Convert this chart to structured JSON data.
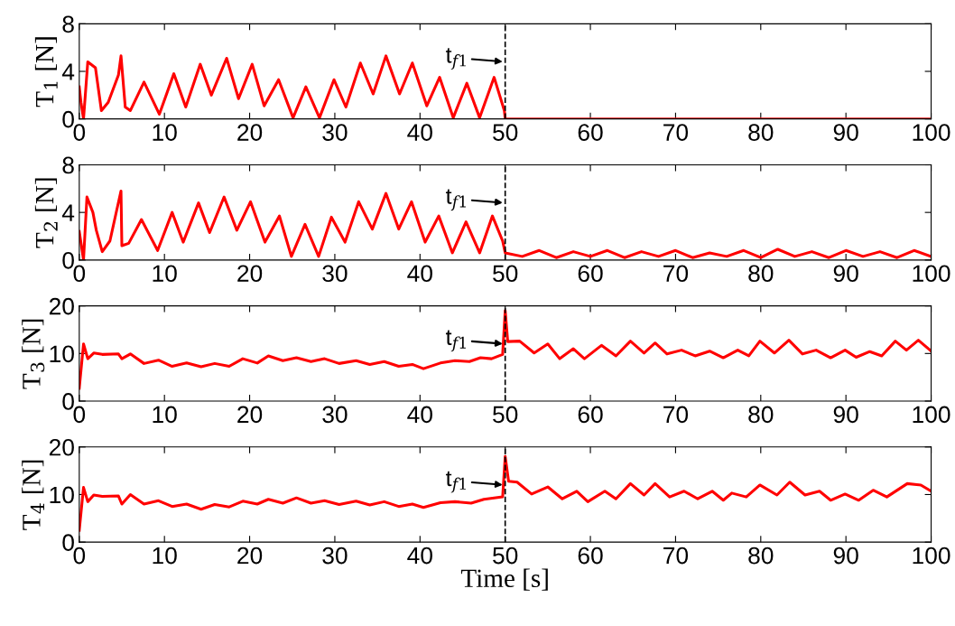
{
  "chart_data": [
    {
      "type": "line",
      "ylabel": "T$_{1}$ [N]",
      "xlim": [
        0,
        100
      ],
      "ylim": [
        0,
        8
      ],
      "xticks": [
        0,
        10,
        20,
        30,
        40,
        50,
        60,
        70,
        80,
        90,
        100
      ],
      "yticks": [
        0,
        4,
        8
      ],
      "grid": false,
      "legend": false,
      "marker": "none",
      "line_style": "solid",
      "series": [
        {
          "color": "#ff0000",
          "x": [
            0,
            0.2,
            0.5,
            1.0,
            1.9,
            2.6,
            3.4,
            4.6,
            4.9,
            5.4,
            6.0,
            7.6,
            9.4,
            11.1,
            12.5,
            14.2,
            15.5,
            17.3,
            18.7,
            20.3,
            21.7,
            23.4,
            25.1,
            26.6,
            28.2,
            29.9,
            31.3,
            33.0,
            34.5,
            36.0,
            37.6,
            39.1,
            40.8,
            42.3,
            43.9,
            45.5,
            47.0,
            48.7,
            49.9,
            50.0,
            100
          ],
          "values": [
            2.7,
            1.4,
            0,
            4.8,
            4.3,
            0.7,
            1.4,
            3.7,
            5.3,
            1.0,
            0.7,
            3.1,
            0.4,
            3.8,
            1.0,
            4.6,
            2.0,
            5.1,
            1.7,
            4.6,
            1.1,
            3.3,
            0.1,
            2.7,
            0.1,
            3.3,
            1.0,
            4.7,
            2.1,
            5.3,
            2.1,
            4.7,
            1.1,
            3.5,
            0.1,
            3.0,
            0.1,
            3.5,
            0.7,
            0,
            0
          ]
        }
      ],
      "ref_lines": [
        {
          "axis": "x",
          "value": 50,
          "label": "t$_{f1}$",
          "color": "#000000",
          "line_style": "dashed"
        }
      ]
    },
    {
      "type": "line",
      "ylabel": "T$_{2}$ [N]",
      "xlim": [
        0,
        100
      ],
      "ylim": [
        0,
        8
      ],
      "xticks": [
        0,
        10,
        20,
        30,
        40,
        50,
        60,
        70,
        80,
        90,
        100
      ],
      "yticks": [
        0,
        4,
        8
      ],
      "grid": false,
      "legend": false,
      "marker": "none",
      "line_style": "solid",
      "series": [
        {
          "color": "#ff0000",
          "x": [
            0,
            0.5,
            0.9,
            1.6,
            2.0,
            2.7,
            3.6,
            4.4,
            4.9,
            5.0,
            5.8,
            7.3,
            9.2,
            10.9,
            12.2,
            14.0,
            15.3,
            17.0,
            18.5,
            20.1,
            21.8,
            23.5,
            24.9,
            26.5,
            28.1,
            29.6,
            31.2,
            32.8,
            34.4,
            36.0,
            37.5,
            39.0,
            40.6,
            42.2,
            43.8,
            45.4,
            47.0,
            48.5,
            49.7,
            50.0,
            52,
            54,
            56,
            58,
            60,
            62,
            64,
            66,
            68,
            70,
            72,
            74,
            76,
            78,
            80,
            82,
            84,
            86,
            88,
            90,
            92,
            94,
            96,
            98,
            100
          ],
          "values": [
            2.4,
            0,
            5.3,
            4.0,
            2.5,
            0.7,
            1.6,
            4.2,
            5.8,
            1.2,
            1.4,
            3.4,
            0.8,
            4.0,
            1.5,
            4.8,
            2.3,
            5.3,
            2.5,
            4.9,
            1.5,
            3.7,
            0.3,
            3.0,
            0.3,
            3.6,
            1.5,
            4.9,
            2.6,
            5.6,
            2.6,
            4.9,
            1.5,
            3.7,
            0.6,
            3.2,
            0.6,
            3.7,
            1.6,
            0.6,
            0.3,
            0.8,
            0.2,
            0.7,
            0.3,
            0.8,
            0.2,
            0.7,
            0.3,
            0.8,
            0.2,
            0.6,
            0.3,
            0.8,
            0.2,
            0.9,
            0.3,
            0.7,
            0.2,
            0.8,
            0.3,
            0.7,
            0.2,
            0.8,
            0.3
          ]
        }
      ],
      "ref_lines": [
        {
          "axis": "x",
          "value": 50,
          "label": "t$_{f1}$",
          "color": "#000000",
          "line_style": "dashed"
        }
      ]
    },
    {
      "type": "line",
      "ylabel": "T$_{3}$ [N]",
      "xlim": [
        0,
        100
      ],
      "ylim": [
        0,
        20
      ],
      "xticks": [
        0,
        10,
        20,
        30,
        40,
        50,
        60,
        70,
        80,
        90,
        100
      ],
      "yticks": [
        0,
        10,
        20
      ],
      "grid": false,
      "legend": false,
      "marker": "none",
      "line_style": "solid",
      "series": [
        {
          "color": "#ff0000",
          "x": [
            0,
            0.5,
            1.0,
            1.7,
            2.7,
            4.6,
            5.0,
            6.0,
            7.6,
            9.3,
            10.9,
            12.6,
            14.3,
            15.9,
            17.6,
            19.2,
            20.9,
            22.2,
            23.9,
            25.5,
            27.2,
            28.8,
            30.5,
            32.5,
            34.1,
            35.8,
            37.5,
            39.1,
            40.4,
            42.4,
            44.1,
            45.8,
            47.1,
            48.4,
            49.7,
            50.0,
            50.3,
            51.7,
            53.4,
            55.0,
            56.4,
            58.0,
            59.3,
            61.3,
            63.0,
            64.7,
            66.3,
            67.6,
            69.0,
            70.7,
            72.3,
            74.0,
            75.6,
            77.3,
            78.6,
            79.9,
            81.6,
            83.3,
            84.9,
            86.5,
            88.2,
            89.9,
            91.2,
            92.8,
            94.2,
            95.8,
            97.1,
            98.5,
            100
          ],
          "values": [
            2.7,
            12.0,
            8.9,
            10.1,
            9.8,
            9.9,
            8.9,
            9.9,
            7.9,
            8.6,
            7.3,
            8.0,
            7.2,
            7.9,
            7.3,
            8.9,
            8.0,
            9.5,
            8.5,
            9.1,
            8.3,
            8.9,
            7.9,
            8.5,
            7.7,
            8.3,
            7.3,
            7.7,
            6.8,
            8.0,
            8.5,
            8.3,
            9.1,
            8.9,
            9.8,
            19,
            12.5,
            12.6,
            10.1,
            12.0,
            8.9,
            11.0,
            8.9,
            11.7,
            9.5,
            12.6,
            10.1,
            12.2,
            9.9,
            10.7,
            9.5,
            10.5,
            9.1,
            10.7,
            9.5,
            12.6,
            10.1,
            12.8,
            9.9,
            10.7,
            9.1,
            10.7,
            9.2,
            10.4,
            9.5,
            12.6,
            10.7,
            12.8,
            10.5
          ]
        }
      ],
      "ref_lines": [
        {
          "axis": "x",
          "value": 50,
          "label": "t$_{f1}$",
          "color": "#000000",
          "line_style": "dashed"
        }
      ]
    },
    {
      "type": "line",
      "ylabel": "T$_{4}$ [N]",
      "xlabel": "Time [s]",
      "xlim": [
        0,
        100
      ],
      "ylim": [
        0,
        20
      ],
      "xticks": [
        0,
        10,
        20,
        30,
        40,
        50,
        60,
        70,
        80,
        90,
        100
      ],
      "yticks": [
        0,
        10,
        20
      ],
      "grid": false,
      "legend": false,
      "marker": "none",
      "line_style": "solid",
      "series": [
        {
          "color": "#ff0000",
          "x": [
            0,
            0.5,
            1.0,
            1.7,
            2.7,
            4.6,
            5.0,
            6.0,
            7.6,
            9.3,
            10.9,
            12.6,
            14.3,
            15.9,
            17.6,
            19.2,
            20.9,
            22.2,
            23.9,
            25.5,
            27.2,
            28.8,
            30.5,
            32.5,
            34.1,
            35.8,
            37.5,
            39.1,
            40.4,
            42.4,
            44.1,
            46.0,
            47.5,
            49.7,
            50.0,
            50.4,
            51.4,
            53.1,
            55.0,
            56.7,
            58.4,
            59.7,
            61.7,
            63.0,
            64.7,
            66.3,
            67.6,
            69.3,
            71.0,
            72.6,
            74.3,
            75.6,
            76.6,
            78.3,
            79.9,
            81.9,
            83.4,
            85.2,
            86.9,
            88.2,
            89.9,
            91.5,
            93.2,
            94.8,
            97.2,
            98.8,
            100
          ],
          "values": [
            2.5,
            11.5,
            8.5,
            9.9,
            9.6,
            9.7,
            8.0,
            10.0,
            8.0,
            8.7,
            7.5,
            8.0,
            6.9,
            7.9,
            7.4,
            8.6,
            8.0,
            9.0,
            8.2,
            9.3,
            8.2,
            8.7,
            7.9,
            8.6,
            7.8,
            8.5,
            7.5,
            8.0,
            7.3,
            8.3,
            8.5,
            8.2,
            9.0,
            9.5,
            18,
            12.8,
            12.6,
            10.1,
            11.6,
            9.1,
            10.7,
            8.5,
            10.7,
            9.1,
            12.3,
            9.9,
            12.3,
            9.5,
            10.7,
            9.1,
            10.7,
            8.8,
            10.3,
            9.5,
            12.0,
            9.9,
            12.6,
            9.9,
            10.7,
            8.8,
            10.1,
            8.8,
            10.9,
            9.5,
            12.3,
            12.0,
            10.7
          ]
        }
      ],
      "ref_lines": [
        {
          "axis": "x",
          "value": 50,
          "label": "t$_{f1}$",
          "color": "#000000",
          "line_style": "dashed"
        }
      ]
    }
  ]
}
